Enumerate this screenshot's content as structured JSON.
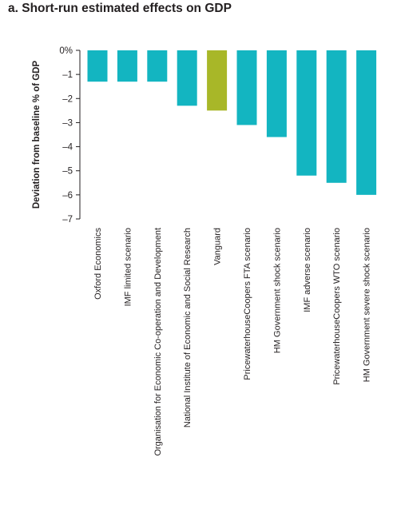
{
  "chart_data": {
    "type": "bar",
    "title": "a. Short-run estimated effects on GDP",
    "xlabel": "",
    "ylabel": "Deviation from baseline % of GDP",
    "ylim": [
      -7,
      0
    ],
    "y_ticks": [
      "0%",
      "–1",
      "–2",
      "–3",
      "–4",
      "–5",
      "–6",
      "–7"
    ],
    "grid": false,
    "categories": [
      "Oxford Economics",
      "IMF limited scenario",
      "Organisation for Economic Co-operation and Development",
      "National Institute of Economic and Social Research",
      "Vanguard",
      "PricewaterhouseCoopers FTA scenario",
      "HM Government shock scenario",
      "IMF adverse scenario",
      "PricewaterhouseCoopers WTO scenario",
      "HM Government severe shock scenario"
    ],
    "values": [
      -1.3,
      -1.3,
      -1.3,
      -2.3,
      -2.5,
      -3.1,
      -3.6,
      -5.2,
      -5.5,
      -6.0
    ],
    "colors": [
      "#13b5c1",
      "#13b5c1",
      "#13b5c1",
      "#13b5c1",
      "#a8b728",
      "#13b5c1",
      "#13b5c1",
      "#13b5c1",
      "#13b5c1",
      "#13b5c1"
    ],
    "axis_color": "#231f20"
  }
}
